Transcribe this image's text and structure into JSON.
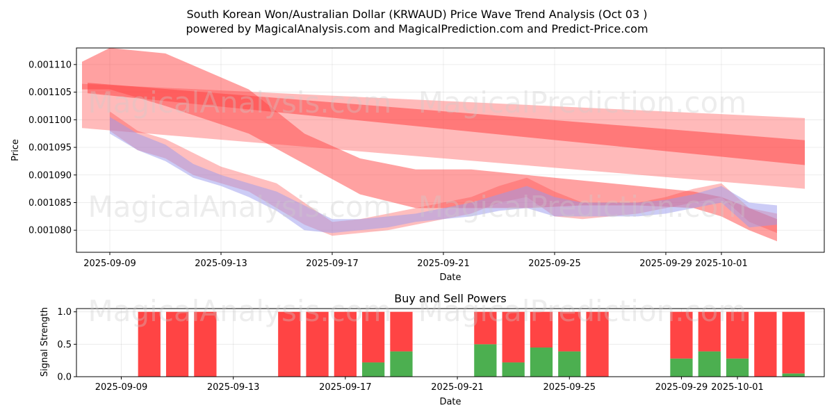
{
  "title_line1": "South Korean Won/Australian Dollar (KRWAUD) Price Wave Trend Analysis (Oct 03 )",
  "title_line2": "powered by MagicalAnalysis.com and MagicalPrediction.com and Predict-Price.com",
  "watermarks": [
    "MagicalAnalysis.com",
    "MagicalPrediction.com"
  ],
  "colors": {
    "red": "#ff4444",
    "green": "#4caf50",
    "blue_band": "#9999ee",
    "pink_band": "#ff9999"
  },
  "chart_data": [
    {
      "type": "area",
      "name": "price-wave-chart",
      "xlabel": "Date",
      "ylabel": "Price",
      "xlim_day": [
        -1.2,
        25.7
      ],
      "ylim": [
        0.001076,
        0.001113
      ],
      "x_ticks": [
        {
          "label": "2025-09-09",
          "day": 0
        },
        {
          "label": "2025-09-13",
          "day": 4
        },
        {
          "label": "2025-09-17",
          "day": 8
        },
        {
          "label": "2025-09-21",
          "day": 12
        },
        {
          "label": "2025-09-25",
          "day": 16
        },
        {
          "label": "2025-09-29",
          "day": 20
        },
        {
          "label": "2025-10-01",
          "day": 22
        }
      ],
      "y_ticks": [
        "0.001080",
        "0.001085",
        "0.001090",
        "0.001095",
        "0.001100",
        "0.001105",
        "0.001110"
      ],
      "y_tick_values": [
        0.00108,
        0.001085,
        0.00109,
        0.001095,
        0.0011,
        0.001105,
        0.00111
      ],
      "series": [
        {
          "name": "wide-trend-band",
          "color": "#ff6666",
          "opacity": 0.45,
          "x": [
            -1,
            25
          ],
          "upper": [
            0.0011065,
            0.0011003
          ],
          "lower": [
            0.0010985,
            0.0010875
          ]
        },
        {
          "name": "trend-core",
          "color": "#ff4444",
          "opacity": 0.55,
          "x": [
            -0.8,
            25
          ],
          "upper": [
            0.0011067,
            0.0010963
          ],
          "lower": [
            0.0011048,
            0.0010918
          ]
        },
        {
          "name": "falling-wave-band",
          "color": "#ff4444",
          "opacity": 0.5,
          "x": [
            -1,
            0,
            2,
            5,
            7,
            9,
            11,
            13,
            15,
            17,
            19,
            21,
            22,
            23,
            24
          ],
          "upper": [
            0.0011105,
            0.001113,
            0.001112,
            0.0011055,
            0.0010975,
            0.001093,
            0.001091,
            0.001091,
            0.00109,
            0.001089,
            0.001088,
            0.001087,
            0.001086,
            0.001084,
            0.001082
          ],
          "lower": [
            0.0011055,
            0.0011055,
            0.0011025,
            0.0010975,
            0.001092,
            0.0010865,
            0.001084,
            0.001084,
            0.001084,
            0.0010845,
            0.0010845,
            0.001084,
            0.0010825,
            0.00108,
            0.001078
          ]
        },
        {
          "name": "price-wave-band",
          "color": "#ff4444",
          "opacity": 0.35,
          "x": [
            0,
            1,
            2,
            3,
            4,
            5,
            6,
            7,
            8,
            9,
            10,
            11,
            12,
            13,
            14,
            15,
            16,
            17,
            18,
            19,
            20,
            21,
            22,
            23,
            24
          ],
          "upper": [
            0.0011015,
            0.001098,
            0.0010965,
            0.001094,
            0.0010915,
            0.00109,
            0.0010885,
            0.001085,
            0.0010815,
            0.001082,
            0.001083,
            0.001084,
            0.001085,
            0.001086,
            0.001088,
            0.0010895,
            0.001087,
            0.001085,
            0.001085,
            0.001085,
            0.001086,
            0.0010875,
            0.0010885,
            0.001084,
            0.001083
          ],
          "lower": [
            0.001098,
            0.0010945,
            0.001093,
            0.00109,
            0.0010885,
            0.001087,
            0.001084,
            0.001081,
            0.001079,
            0.0010795,
            0.00108,
            0.001081,
            0.001082,
            0.001083,
            0.001085,
            0.001086,
            0.0010825,
            0.001082,
            0.0010825,
            0.001083,
            0.001084,
            0.001085,
            0.001086,
            0.0010815,
            0.0010795
          ]
        },
        {
          "name": "purple-wave-band",
          "color": "#9999ee",
          "opacity": 0.5,
          "x": [
            0,
            1,
            2,
            3,
            4,
            5,
            6,
            7,
            8,
            9,
            10,
            11,
            12,
            13,
            14,
            15,
            16,
            17,
            18,
            19,
            20,
            21,
            22,
            23,
            24
          ],
          "upper": [
            0.0011005,
            0.0010975,
            0.0010955,
            0.001092,
            0.00109,
            0.0010885,
            0.001087,
            0.0010845,
            0.001082,
            0.001082,
            0.0010825,
            0.001083,
            0.001084,
            0.001085,
            0.0010865,
            0.001088,
            0.001086,
            0.001085,
            0.001085,
            0.001085,
            0.0010855,
            0.0010865,
            0.001088,
            0.001085,
            0.0010845
          ],
          "lower": [
            0.0010975,
            0.0010945,
            0.0010925,
            0.0010895,
            0.001088,
            0.001086,
            0.0010835,
            0.00108,
            0.0010795,
            0.00108,
            0.0010805,
            0.0010815,
            0.001082,
            0.0010825,
            0.0010835,
            0.001084,
            0.0010825,
            0.0010825,
            0.0010825,
            0.0010825,
            0.001083,
            0.001084,
            0.001085,
            0.0010805,
            0.001081
          ]
        }
      ]
    },
    {
      "type": "bar",
      "name": "buy-sell-power-chart",
      "title": "Buy and Sell Powers",
      "xlabel": "Date",
      "ylabel": "Signal Strength",
      "xlim_day": [
        -1.6,
        25.1
      ],
      "ylim": [
        0,
        1.05
      ],
      "x_ticks": [
        {
          "label": "2025-09-09",
          "day": 0
        },
        {
          "label": "2025-09-13",
          "day": 4
        },
        {
          "label": "2025-09-17",
          "day": 8
        },
        {
          "label": "2025-09-21",
          "day": 12
        },
        {
          "label": "2025-09-25",
          "day": 16
        },
        {
          "label": "2025-09-29",
          "day": 20
        },
        {
          "label": "2025-10-01",
          "day": 22
        }
      ],
      "y_ticks": [
        "0.0",
        "0.5",
        "1.0"
      ],
      "y_tick_values": [
        0,
        0.5,
        1.0
      ],
      "bar_width_days": 0.8,
      "bars": [
        {
          "day": 1,
          "buy": 0.0,
          "sell": 1.0
        },
        {
          "day": 2,
          "buy": 0.0,
          "sell": 1.0
        },
        {
          "day": 3,
          "buy": 0.0,
          "sell": 1.0
        },
        {
          "day": 6,
          "buy": 0.0,
          "sell": 1.0
        },
        {
          "day": 7,
          "buy": 0.0,
          "sell": 1.0
        },
        {
          "day": 8,
          "buy": 0.0,
          "sell": 1.0
        },
        {
          "day": 9,
          "buy": 0.22,
          "sell": 0.78
        },
        {
          "day": 10,
          "buy": 0.39,
          "sell": 0.61
        },
        {
          "day": 13,
          "buy": 0.5,
          "sell": 0.5
        },
        {
          "day": 14,
          "buy": 0.22,
          "sell": 0.78
        },
        {
          "day": 15,
          "buy": 0.45,
          "sell": 0.55
        },
        {
          "day": 16,
          "buy": 0.39,
          "sell": 0.61
        },
        {
          "day": 17,
          "buy": 0.0,
          "sell": 1.0
        },
        {
          "day": 20,
          "buy": 0.28,
          "sell": 0.72
        },
        {
          "day": 21,
          "buy": 0.39,
          "sell": 0.61
        },
        {
          "day": 22,
          "buy": 0.28,
          "sell": 0.72
        },
        {
          "day": 23,
          "buy": 0.0,
          "sell": 1.0
        },
        {
          "day": 24,
          "buy": 0.05,
          "sell": 0.95
        }
      ]
    }
  ]
}
